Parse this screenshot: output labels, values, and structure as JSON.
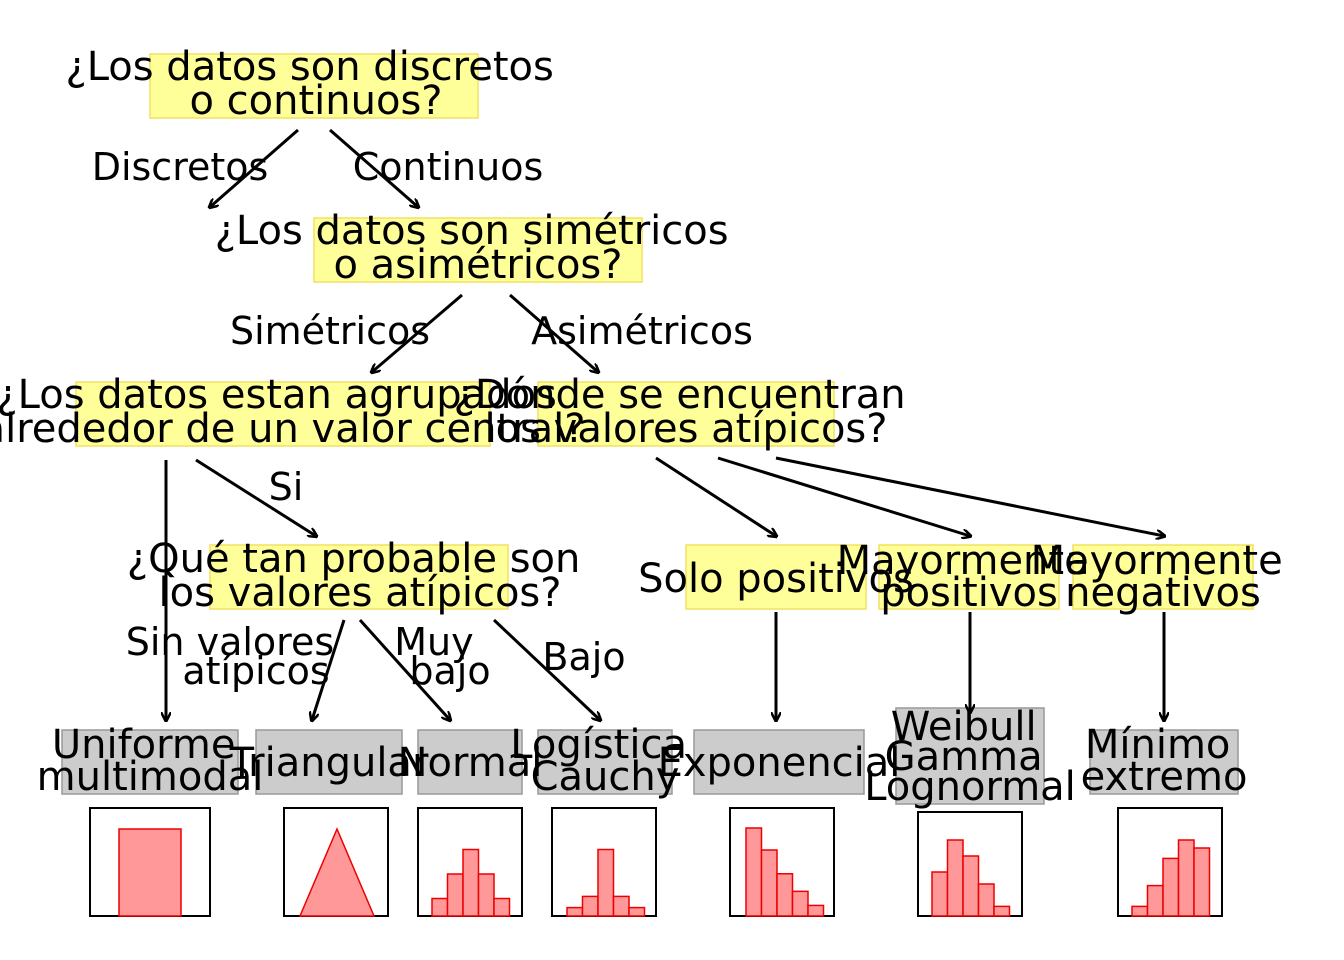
{
  "questions": {
    "q1": [
      "¿Los datos son discretos",
      "o continuos?"
    ],
    "q2": [
      "¿Los datos son simétricos",
      "o asimétricos?"
    ],
    "q3": [
      "¿Los datos estan agrupados",
      "alrededor de un valor central?"
    ],
    "q4": [
      "¿Dónde se encuentran",
      "los valores atípicos?"
    ],
    "q5": [
      "¿Qué tan probable son",
      "los valores atípicos?"
    ]
  },
  "branches": {
    "discretos": "Discretos",
    "continuos": "Continuos",
    "simetricos": "Simétricos",
    "asimetricos": "Asimétricos",
    "si": "Si",
    "sin_valores": [
      "Sin valores",
      "atípicos"
    ],
    "muy_bajo": [
      "Muy",
      "bajo"
    ],
    "bajo": "Bajo"
  },
  "outlier_boxes": {
    "solo_positivos": "Solo positivos",
    "mayormente_positivos": [
      "Mayormente",
      "positivos"
    ],
    "mayormente_negativos": [
      "Mayormente",
      "negativos"
    ]
  },
  "distributions": {
    "uniforme": [
      "Uniforme",
      "multimodal"
    ],
    "triangular": "Triangular",
    "normal": "Normal",
    "logistica": [
      "Logística",
      "Cauchy"
    ],
    "exponencial": "Exponencial",
    "weibull": [
      "Weibull",
      "Gamma",
      "Lognormal"
    ],
    "minimo": [
      "Mínimo",
      "extremo"
    ]
  },
  "histograms": {
    "normal": [
      0.25,
      0.6,
      0.95,
      0.6,
      0.25
    ],
    "logistica": [
      0.12,
      0.28,
      0.95,
      0.28,
      0.12
    ],
    "exponencial": [
      1.0,
      0.75,
      0.48,
      0.28,
      0.12
    ],
    "weibull": [
      0.55,
      0.95,
      0.75,
      0.4,
      0.12
    ],
    "minimo": [
      0.12,
      0.38,
      0.72,
      0.95,
      0.85
    ]
  }
}
